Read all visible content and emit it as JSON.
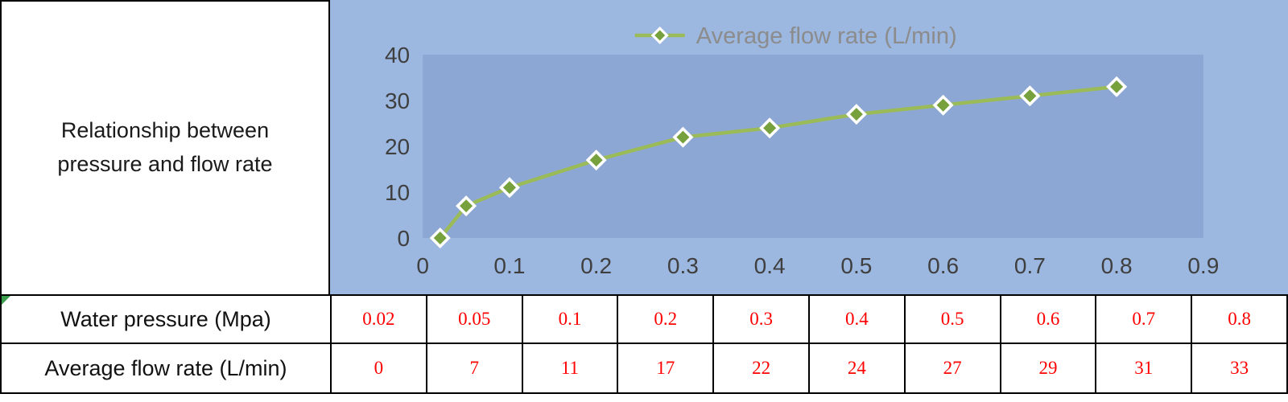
{
  "left_cell": {
    "title": "Relationship between pressure and flow rate"
  },
  "chart": {
    "legend_label": "Average flow rate (L/min)"
  },
  "chart_data": {
    "type": "line",
    "title": "",
    "xlabel": "",
    "ylabel": "",
    "x": [
      0.02,
      0.05,
      0.1,
      0.2,
      0.3,
      0.4,
      0.5,
      0.6,
      0.7,
      0.8
    ],
    "series": [
      {
        "name": "Average flow rate (L/min)",
        "values": [
          0,
          7,
          11,
          17,
          22,
          24,
          27,
          29,
          31,
          33
        ]
      }
    ],
    "xlim": [
      0,
      0.9
    ],
    "ylim": [
      0,
      40
    ],
    "x_ticks": [
      "0",
      "0.1",
      "0.2",
      "0.3",
      "0.4",
      "0.5",
      "0.6",
      "0.7",
      "0.8",
      "0.9"
    ],
    "y_ticks": [
      "0",
      "10",
      "20",
      "30",
      "40"
    ],
    "legend_position": "top-center",
    "grid": false,
    "marker": "diamond",
    "colors": {
      "line": "#9BBB59",
      "marker_fill": "#76A13C",
      "marker_border": "#FFFFFF",
      "chart_bg": "#9CB7E0",
      "plot_bg": "#8CA7D3",
      "tick_text": "#3F3F3F",
      "legend_text": "#8C8C8C"
    }
  },
  "table": {
    "value_color": "#FF0000",
    "rows": [
      {
        "label": "Water pressure (Mpa)",
        "values": [
          "0.02",
          "0.05",
          "0.1",
          "0.2",
          "0.3",
          "0.4",
          "0.5",
          "0.6",
          "0.7",
          "0.8"
        ]
      },
      {
        "label": "Average flow rate (L/min)",
        "values": [
          "0",
          "7",
          "11",
          "17",
          "22",
          "24",
          "27",
          "29",
          "31",
          "33"
        ]
      }
    ]
  }
}
